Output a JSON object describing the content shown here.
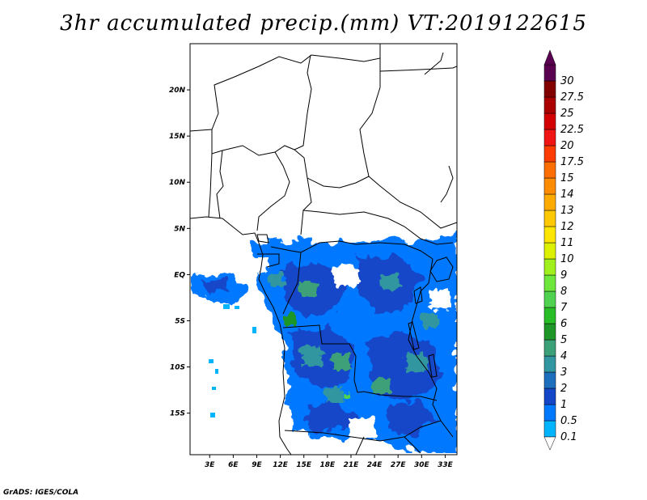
{
  "title": "3hr accumulated precip.(mm) VT:2019122615",
  "credit": "GrADS: IGES/COLA",
  "map": {
    "lat_ticks": [
      {
        "label": "20N",
        "lat": 20
      },
      {
        "label": "15N",
        "lat": 15
      },
      {
        "label": "10N",
        "lat": 10
      },
      {
        "label": "5N",
        "lat": 5
      },
      {
        "label": "EQ",
        "lat": 0
      },
      {
        "label": "5S",
        "lat": -5
      },
      {
        "label": "10S",
        "lat": -10
      },
      {
        "label": "15S",
        "lat": -15
      }
    ],
    "lon_ticks": [
      {
        "label": "3E",
        "lon": 3
      },
      {
        "label": "6E",
        "lon": 6
      },
      {
        "label": "9E",
        "lon": 9
      },
      {
        "label": "12E",
        "lon": 12
      },
      {
        "label": "15E",
        "lon": 15
      },
      {
        "label": "18E",
        "lon": 18
      },
      {
        "label": "21E",
        "lon": 21
      },
      {
        "label": "24E",
        "lon": 24
      },
      {
        "label": "27E",
        "lon": 27
      },
      {
        "label": "30E",
        "lon": 30
      },
      {
        "label": "33E",
        "lon": 33
      }
    ],
    "lon_range": [
      0.5,
      34.5
    ],
    "lat_range": [
      -19.5,
      25
    ]
  },
  "colorbar": {
    "levels": [
      {
        "label": "0.1",
        "color": "#00b4ff"
      },
      {
        "label": "0.5",
        "color": "#0078ff"
      },
      {
        "label": "1",
        "color": "#1446c8"
      },
      {
        "label": "2",
        "color": "#1e6ebe"
      },
      {
        "label": "3",
        "color": "#3296a0"
      },
      {
        "label": "4",
        "color": "#3ca078"
      },
      {
        "label": "5",
        "color": "#1e9628"
      },
      {
        "label": "6",
        "color": "#28be28"
      },
      {
        "label": "7",
        "color": "#50d250"
      },
      {
        "label": "8",
        "color": "#6ee63c"
      },
      {
        "label": "9",
        "color": "#a0f01e"
      },
      {
        "label": "10",
        "color": "#dcf000"
      },
      {
        "label": "11",
        "color": "#ffe600"
      },
      {
        "label": "12",
        "color": "#ffc800"
      },
      {
        "label": "13",
        "color": "#ffaa00"
      },
      {
        "label": "14",
        "color": "#ff8c00"
      },
      {
        "label": "15",
        "color": "#ff6e00"
      },
      {
        "label": "17.5",
        "color": "#ff3c00"
      },
      {
        "label": "20",
        "color": "#f01414"
      },
      {
        "label": "22.5",
        "color": "#d20000"
      },
      {
        "label": "25",
        "color": "#aa0000"
      },
      {
        "label": "27.5",
        "color": "#820000"
      },
      {
        "label": "30",
        "color": "#5a0050"
      }
    ]
  }
}
